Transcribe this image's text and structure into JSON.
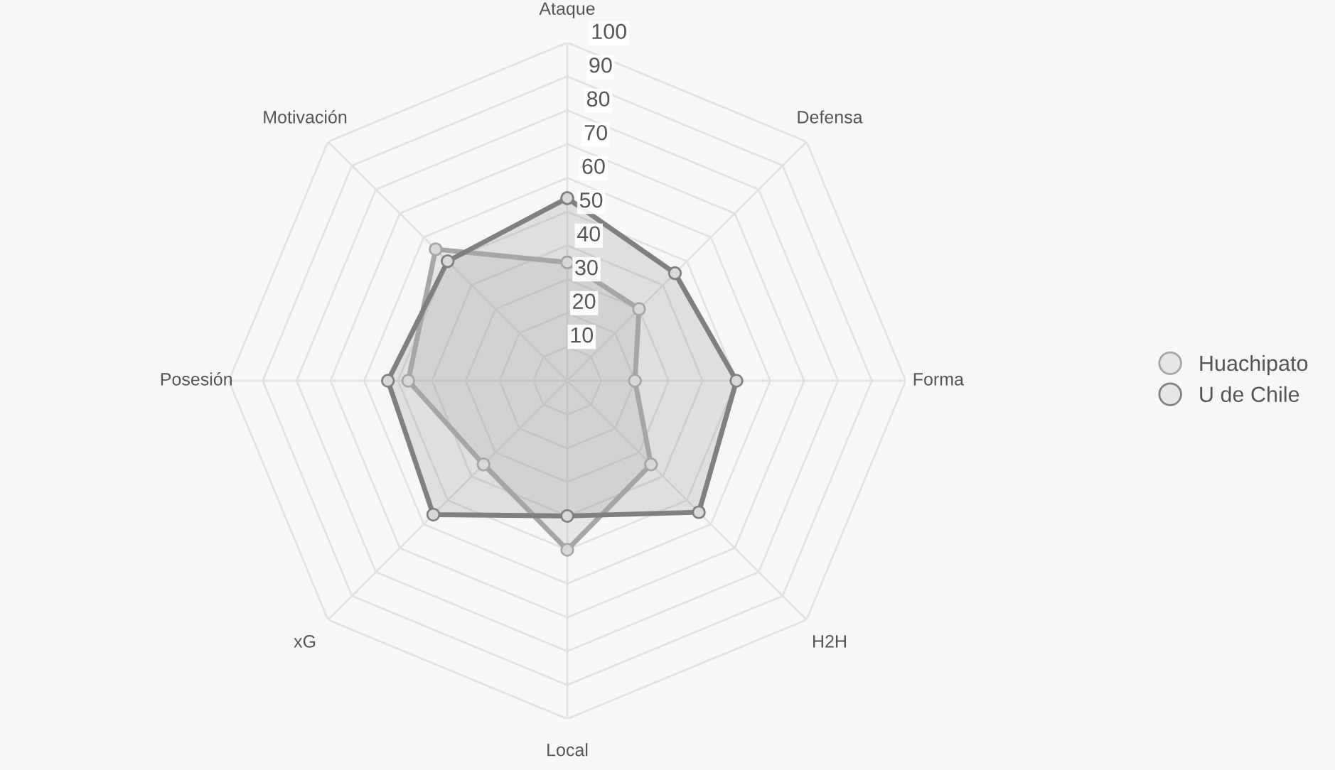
{
  "chart_data": {
    "type": "radar",
    "categories": [
      "Ataque",
      "Defensa",
      "Forma",
      "H2H",
      "Local",
      "xG",
      "Posesión",
      "Motivación"
    ],
    "series": [
      {
        "name": "Huachipato",
        "color": "#a6a6a6",
        "values": [
          35,
          30,
          20,
          35,
          50,
          35,
          47,
          55
        ]
      },
      {
        "name": "U de Chile",
        "color": "#808080",
        "values": [
          54,
          45,
          50,
          55,
          40,
          56,
          53,
          50
        ]
      }
    ],
    "ylim": [
      0,
      100
    ],
    "yticks": [
      10,
      20,
      30,
      40,
      50,
      60,
      70,
      80,
      90,
      100
    ],
    "grid": true,
    "legend": "right",
    "marker": "circle"
  }
}
